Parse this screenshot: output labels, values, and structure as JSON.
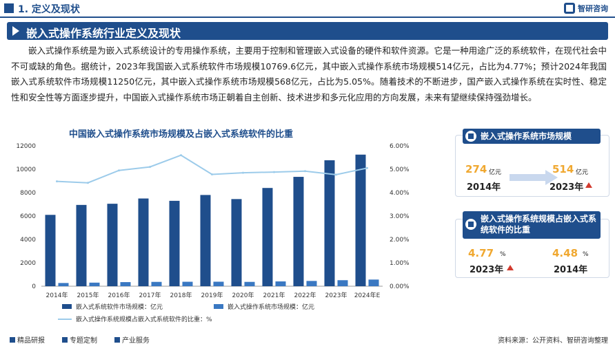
{
  "header": {
    "section_title": "1. 定义及现状",
    "logo_text": "智研咨询"
  },
  "banner": {
    "title": "嵌入式操作系统行业定义及现状"
  },
  "intro": {
    "text": "嵌入式操作系统是为嵌入式系统设计的专用操作系统，主要用于控制和管理嵌入式设备的硬件和软件资源。它是一种用途广泛的系统软件，在现代社会中不可或缺的角色。据统计，2023年我国嵌入式系统软件市场规模10769.6亿元，其中嵌入式操作系统市场规模514亿元，占比为4.77%；预计2024年我国嵌入式系统软件市场规模11250亿元，其中嵌入式操作系统市场规模568亿元，占比为5.05%。随着技术的不断进步，国产嵌入式操作系统在实时性、稳定性和安全性等方面逐步提升，中国嵌入式操作系统市场正朝着自主创新、技术进步和多元化应用的方向发展，未来有望继续保持强劲增长。"
  },
  "chart_data": {
    "type": "bar",
    "title": "中国嵌入式操作系统市场规模及占嵌入式系统软件的比重",
    "categories": [
      "2014年",
      "2015年",
      "2016年",
      "2017年",
      "2018年",
      "2019年",
      "2020年",
      "2021年",
      "2022年",
      "2023年",
      "2024年E"
    ],
    "y_left_ticks": [
      "0",
      "2000",
      "4000",
      "6000",
      "8000",
      "10000",
      "12000"
    ],
    "y_right_ticks": [
      "0.00%",
      "1.00%",
      "2.00%",
      "3.00%",
      "4.00%",
      "5.00%",
      "6.00%"
    ],
    "ylim_left": [
      0,
      12000
    ],
    "ylim_right": [
      0,
      6
    ],
    "series": [
      {
        "name": "嵌入式系统软件市场规模：亿元",
        "kind": "bar",
        "axis": "left",
        "color": "#1f4e8c",
        "values": [
          6100,
          6950,
          7050,
          7500,
          7300,
          7800,
          7450,
          8400,
          9350,
          10770,
          11250
        ]
      },
      {
        "name": "嵌入式操作系统市场规模：亿元",
        "kind": "bar",
        "axis": "left",
        "color": "#3a78c2",
        "values": [
          274,
          305,
          350,
          370,
          380,
          385,
          370,
          410,
          450,
          514,
          568
        ]
      },
      {
        "name": "嵌入式操作系统规模占嵌入式系统软件的比重：%",
        "kind": "line",
        "axis": "right",
        "color": "#9ccbea",
        "values": [
          4.48,
          4.42,
          4.95,
          5.1,
          5.6,
          4.78,
          4.85,
          4.88,
          4.92,
          4.77,
          5.05
        ]
      }
    ],
    "legend_position": "bottom",
    "grid": false
  },
  "card_market": {
    "title": "嵌入式操作系统市场规模",
    "left_value": "274",
    "left_unit": "亿元",
    "left_year": "2014年",
    "right_value": "514",
    "right_unit": "亿元",
    "right_year": "2023年"
  },
  "card_share": {
    "title": "嵌入式操作系统规模占嵌入式系统软件的比重",
    "left_value": "4.77",
    "left_unit": "%",
    "left_year": "2023年",
    "right_value": "4.48",
    "right_unit": "%",
    "right_year": "2014年"
  },
  "footer": {
    "items": [
      "精品研报",
      "专题定制",
      "产业服务"
    ],
    "source": "资料来源：公开资料、智研咨询整理"
  },
  "colors": {
    "primary": "#1f4e8c",
    "accent_orange": "#f0a830",
    "up_red": "#d23a2e"
  }
}
